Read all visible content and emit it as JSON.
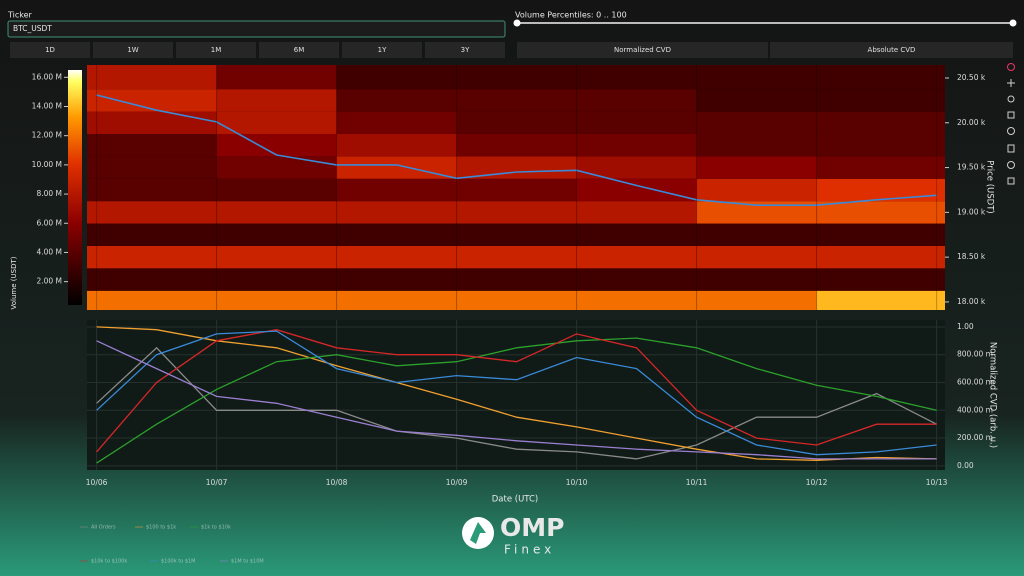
{
  "ui": {
    "ticker_label": "Ticker",
    "ticker_value": "BTC_USDT",
    "slider_label": "Volume Percentiles: 0 .. 100",
    "ranges": [
      "1D",
      "1W",
      "1M",
      "6M",
      "1Y",
      "3Y"
    ],
    "modes": [
      "Normalized CVD",
      "Absolute CVD"
    ]
  },
  "branding": {
    "name": "OMP",
    "sub": "Finex"
  },
  "chart_data": [
    {
      "type": "heatmap",
      "xlim": [
        -0.08,
        7.07
      ],
      "x_edges": [
        -0.08,
        1,
        2,
        3,
        4,
        5,
        6,
        7.07
      ],
      "y_edges": [
        17910,
        18125,
        18375,
        18625,
        18875,
        19125,
        19375,
        19625,
        19875,
        20125,
        20375,
        20645
      ],
      "z": [
        [
          12000000,
          12000000,
          12000000,
          12000000,
          12000000,
          12000000,
          14000000
        ],
        [
          3000000,
          3000000,
          3000000,
          3000000,
          3000000,
          3000000,
          3000000
        ],
        [
          9000000,
          9000000,
          9000000,
          9000000,
          9000000,
          9000000,
          9000000
        ],
        [
          3000000,
          3000000,
          3000000,
          3000000,
          3000000,
          3000000,
          3000000
        ],
        [
          8000000,
          8000000,
          8000000,
          8000000,
          8000000,
          11000000,
          11000000
        ],
        [
          4000000,
          4000000,
          5000000,
          5000000,
          6000000,
          9000000,
          10000000
        ],
        [
          4000000,
          5000000,
          9000000,
          8000000,
          7000000,
          6000000,
          5000000
        ],
        [
          4000000,
          6000000,
          7000000,
          5000000,
          5000000,
          4000000,
          4000000
        ],
        [
          7000000,
          8000000,
          5000000,
          4000000,
          4000000,
          4000000,
          4000000
        ],
        [
          9000000,
          8000000,
          4000000,
          4000000,
          4000000,
          3000000,
          3000000
        ],
        [
          8000000,
          5000000,
          3000000,
          3000000,
          3000000,
          3000000,
          3000000
        ]
      ],
      "colorbar": {
        "label": "Volume (USDT)",
        "lim": [
          400000,
          16500000
        ],
        "ticks": [
          {
            "value": 2000000,
            "label": "2.00 M"
          },
          {
            "value": 4000000,
            "label": "4.00 M"
          },
          {
            "value": 6000000,
            "label": "6.00 M"
          },
          {
            "value": 8000000,
            "label": "8.00 M"
          },
          {
            "value": 10000000,
            "label": "10.00 M"
          },
          {
            "value": 12000000,
            "label": "12.00 M"
          },
          {
            "value": 14000000,
            "label": "14.00 M"
          },
          {
            "value": 16000000,
            "label": "16.00 M"
          }
        ]
      },
      "ylabel": "Price (USDT)",
      "ylim": [
        17910,
        20645
      ],
      "yticks": [
        {
          "value": 18000,
          "label": "18.00 k"
        },
        {
          "value": 18500,
          "label": "18.50 k"
        },
        {
          "value": 19000,
          "label": "19.00 k"
        },
        {
          "value": 19500,
          "label": "19.50 k"
        },
        {
          "value": 20000,
          "label": "20.00 k"
        },
        {
          "value": 20500,
          "label": "20.50 k"
        }
      ],
      "x": [
        0,
        0.5,
        1,
        1.5,
        2,
        2.5,
        3,
        3.5,
        4,
        4.5,
        5,
        5.5,
        6,
        6.5,
        7
      ],
      "series": [
        {
          "color": "#3a8ad8",
          "values": [
            20310,
            20140,
            20010,
            19640,
            19530,
            19530,
            19380,
            19450,
            19470,
            19300,
            19140,
            19080,
            19080,
            19140,
            19190
          ]
        }
      ]
    },
    {
      "type": "line",
      "xlabel": "Date (UTC)",
      "ylabel": "Normalized CVD (arb. u.)",
      "xlim": [
        -0.08,
        7.07
      ],
      "xticks": [
        {
          "value": 0,
          "label": "10/06"
        },
        {
          "value": 1,
          "label": "10/07"
        },
        {
          "value": 2,
          "label": "10/08"
        },
        {
          "value": 3,
          "label": "10/09"
        },
        {
          "value": 4,
          "label": "10/10"
        },
        {
          "value": 5,
          "label": "10/11"
        },
        {
          "value": 6,
          "label": "10/12"
        },
        {
          "value": 7,
          "label": "10/13"
        }
      ],
      "ylim": [
        -0.03,
        1.05
      ],
      "yticks": [
        {
          "value": 0,
          "label": "0.00"
        },
        {
          "value": 0.2,
          "label": "200.00 m"
        },
        {
          "value": 0.4,
          "label": "400.00 m"
        },
        {
          "value": 0.6,
          "label": "600.00 m"
        },
        {
          "value": 0.8,
          "label": "800.00 m"
        },
        {
          "value": 1,
          "label": "1.00"
        }
      ],
      "x": [
        0,
        0.5,
        1,
        1.5,
        2,
        2.5,
        3,
        3.5,
        4,
        4.5,
        5,
        5.5,
        6,
        6.5,
        7
      ],
      "series": [
        {
          "name": "All Orders",
          "color": "#8a8a8a",
          "values": [
            0.45,
            0.85,
            0.4,
            0.4,
            0.4,
            0.25,
            0.2,
            0.12,
            0.1,
            0.05,
            0.15,
            0.35,
            0.35,
            0.52,
            0.3
          ]
        },
        {
          "name": "$100 to $1k",
          "color": "#f0a030",
          "values": [
            1.0,
            0.98,
            0.9,
            0.85,
            0.72,
            0.6,
            0.48,
            0.35,
            0.28,
            0.2,
            0.12,
            0.05,
            0.04,
            0.06,
            0.05
          ]
        },
        {
          "name": "$1k to $10k",
          "color": "#2ca02c",
          "values": [
            0.02,
            0.3,
            0.55,
            0.75,
            0.8,
            0.72,
            0.75,
            0.85,
            0.9,
            0.92,
            0.85,
            0.7,
            0.58,
            0.5,
            0.4
          ]
        },
        {
          "name": "$10k to $100k",
          "color": "#d62728",
          "values": [
            0.1,
            0.6,
            0.9,
            0.98,
            0.85,
            0.8,
            0.8,
            0.75,
            0.95,
            0.85,
            0.4,
            0.2,
            0.15,
            0.3,
            0.3
          ]
        },
        {
          "name": "$100k to $1M",
          "color": "#3a8ad8",
          "values": [
            0.4,
            0.8,
            0.95,
            0.97,
            0.7,
            0.6,
            0.65,
            0.62,
            0.78,
            0.7,
            0.35,
            0.15,
            0.08,
            0.1,
            0.15
          ]
        },
        {
          "name": "$1M to $10M",
          "color": "#9a7fd0",
          "values": [
            0.9,
            0.7,
            0.5,
            0.45,
            0.35,
            0.25,
            0.22,
            0.18,
            0.15,
            0.12,
            0.1,
            0.08,
            0.05,
            0.05,
            0.05
          ]
        }
      ]
    }
  ]
}
